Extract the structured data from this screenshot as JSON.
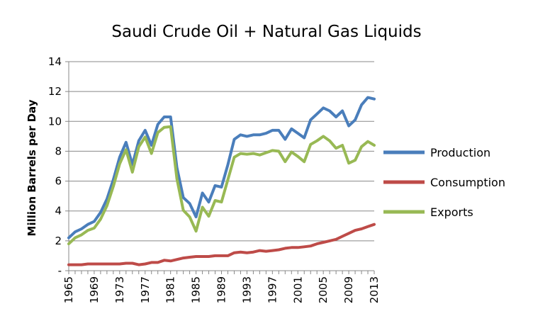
{
  "chart_data": {
    "type": "line",
    "title": "Saudi Crude Oil + Natural Gas Liquids",
    "ylabel": "Million Barrels per Day",
    "xlabel": "",
    "ylim": [
      0,
      14
    ],
    "yticks": [
      0,
      2,
      4,
      6,
      8,
      10,
      12,
      14
    ],
    "ytick_labels": [
      "-",
      "2",
      "4",
      "6",
      "8",
      "10",
      "12",
      "14"
    ],
    "xlim": [
      1965,
      2013
    ],
    "xtick_labels": [
      "1965",
      "1969",
      "1973",
      "1977",
      "1981",
      "1985",
      "1989",
      "1993",
      "1997",
      "2001",
      "2005",
      "2009",
      "2013"
    ],
    "x": [
      1965,
      1966,
      1967,
      1968,
      1969,
      1970,
      1971,
      1972,
      1973,
      1974,
      1975,
      1976,
      1977,
      1978,
      1979,
      1980,
      1981,
      1982,
      1983,
      1984,
      1985,
      1986,
      1987,
      1988,
      1989,
      1990,
      1991,
      1992,
      1993,
      1994,
      1995,
      1996,
      1997,
      1998,
      1999,
      2000,
      2001,
      2002,
      2003,
      2004,
      2005,
      2006,
      2007,
      2008,
      2009,
      2010,
      2011,
      2012,
      2013
    ],
    "grid": "horizontal",
    "legend_position": "right",
    "series": [
      {
        "name": "Production",
        "color": "#4a7ebb",
        "values": [
          2.2,
          2.6,
          2.8,
          3.1,
          3.3,
          3.9,
          4.8,
          6.1,
          7.6,
          8.6,
          7.1,
          8.7,
          9.4,
          8.4,
          9.8,
          10.3,
          10.3,
          6.9,
          4.9,
          4.5,
          3.6,
          5.2,
          4.6,
          5.7,
          5.6,
          7.1,
          8.8,
          9.1,
          9.0,
          9.1,
          9.1,
          9.2,
          9.4,
          9.4,
          8.8,
          9.5,
          9.2,
          8.9,
          10.1,
          10.5,
          10.9,
          10.7,
          10.3,
          10.7,
          9.7,
          10.1,
          11.1,
          11.6,
          11.5
        ]
      },
      {
        "name": "Consumption",
        "color": "#be4b48",
        "values": [
          0.4,
          0.4,
          0.4,
          0.45,
          0.45,
          0.45,
          0.45,
          0.45,
          0.45,
          0.5,
          0.5,
          0.4,
          0.45,
          0.55,
          0.55,
          0.7,
          0.65,
          0.75,
          0.85,
          0.9,
          0.95,
          0.95,
          0.95,
          1.0,
          1.0,
          1.0,
          1.2,
          1.25,
          1.2,
          1.25,
          1.35,
          1.3,
          1.35,
          1.4,
          1.5,
          1.55,
          1.55,
          1.6,
          1.65,
          1.8,
          1.9,
          2.0,
          2.1,
          2.3,
          2.5,
          2.7,
          2.8,
          2.95,
          3.1
        ]
      },
      {
        "name": "Exports",
        "color": "#98b954",
        "values": [
          1.8,
          2.2,
          2.4,
          2.7,
          2.85,
          3.45,
          4.35,
          5.65,
          7.15,
          8.1,
          6.6,
          8.3,
          8.95,
          7.85,
          9.25,
          9.6,
          9.65,
          6.15,
          4.05,
          3.6,
          2.65,
          4.25,
          3.65,
          4.7,
          4.6,
          6.1,
          7.6,
          7.85,
          7.8,
          7.85,
          7.75,
          7.9,
          8.05,
          8.0,
          7.3,
          7.95,
          7.65,
          7.3,
          8.45,
          8.7,
          9.0,
          8.7,
          8.2,
          8.4,
          7.2,
          7.4,
          8.3,
          8.65,
          8.4
        ]
      }
    ]
  }
}
